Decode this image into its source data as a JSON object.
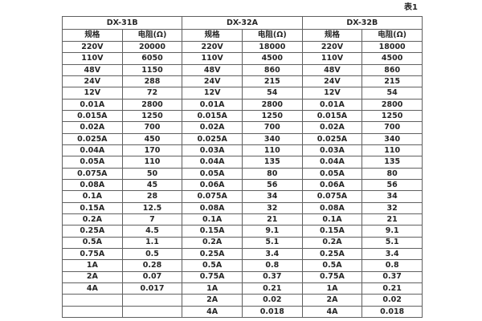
{
  "caption": "表1",
  "colors": {
    "background": "#ffffff",
    "border": "#606060",
    "text": "#262626"
  },
  "table": {
    "groups": [
      {
        "name": "DX-31B",
        "spec_header": "规格",
        "resistance_header": "电阻(Ω)"
      },
      {
        "name": "DX-32A",
        "spec_header": "规格",
        "resistance_header": "电阻(Ω)"
      },
      {
        "name": "DX-32B",
        "spec_header": "规格",
        "resistance_header": "电阻(Ω)"
      }
    ],
    "rows": [
      [
        "220V",
        "20000",
        "220V",
        "18000",
        "220V",
        "18000"
      ],
      [
        "110V",
        "6050",
        "110V",
        "4500",
        "110V",
        "4500"
      ],
      [
        "48V",
        "1150",
        "48V",
        "860",
        "48V",
        "860"
      ],
      [
        "24V",
        "288",
        "24V",
        "215",
        "24V",
        "215"
      ],
      [
        "12V",
        "72",
        "12V",
        "54",
        "12V",
        "54"
      ],
      [
        "0.01A",
        "2800",
        "0.01A",
        "2800",
        "0.01A",
        "2800"
      ],
      [
        "0.015A",
        "1250",
        "0.015A",
        "1250",
        "0.015A",
        "1250"
      ],
      [
        "0.02A",
        "700",
        "0.02A",
        "700",
        "0.02A",
        "700"
      ],
      [
        "0.025A",
        "450",
        "0.025A",
        "340",
        "0.025A",
        "340"
      ],
      [
        "0.04A",
        "170",
        "0.03A",
        "110",
        "0.03A",
        "110"
      ],
      [
        "0.05A",
        "110",
        "0.04A",
        "135",
        "0.04A",
        "135"
      ],
      [
        "0.075A",
        "50",
        "0.05A",
        "80",
        "0.05A",
        "80"
      ],
      [
        "0.08A",
        "45",
        "0.06A",
        "56",
        "0.06A",
        "56"
      ],
      [
        "0.1A",
        "28",
        "0.075A",
        "34",
        "0.075A",
        "34"
      ],
      [
        "0.15A",
        "12.5",
        "0.08A",
        "32",
        "0.08A",
        "32"
      ],
      [
        "0.2A",
        "7",
        "0.1A",
        "21",
        "0.1A",
        "21"
      ],
      [
        "0.25A",
        "4.5",
        "0.15A",
        "9.1",
        "0.15A",
        "9.1"
      ],
      [
        "0.5A",
        "1.1",
        "0.2A",
        "5.1",
        "0.2A",
        "5.1"
      ],
      [
        "0.75A",
        "0.5",
        "0.25A",
        "3.4",
        "0.25A",
        "3.4"
      ],
      [
        "1A",
        "0.28",
        "0.5A",
        "0.8",
        "0.5A",
        "0.8"
      ],
      [
        "2A",
        "0.07",
        "0.75A",
        "0.37",
        "0.75A",
        "0.37"
      ],
      [
        "4A",
        "0.017",
        "1A",
        "0.21",
        "1A",
        "0.21"
      ],
      [
        "",
        "",
        "2A",
        "0.02",
        "2A",
        "0.02"
      ],
      [
        "",
        "",
        "4A",
        "0.018",
        "4A",
        "0.018"
      ]
    ]
  }
}
